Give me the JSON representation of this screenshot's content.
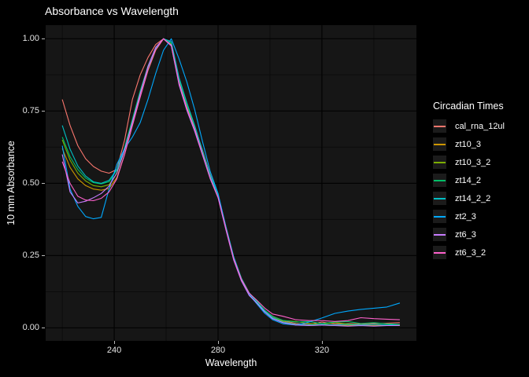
{
  "title": "Absorbance vs Wavelength",
  "axes": {
    "xlabel": "Wavelength",
    "ylabel": "10 mm Absorbance",
    "x_tick_labels": [
      "240",
      "280",
      "320"
    ],
    "y_tick_labels": [
      "0.00",
      "0.25",
      "0.50",
      "0.75",
      "1.00"
    ]
  },
  "legend": {
    "title": "Circadian Times"
  },
  "colors": {
    "background": "#000000",
    "panel": "#161616",
    "grid_major": "#020202",
    "grid_minor": "#0b0b0b",
    "text": "#ffffff",
    "tick_text": "#e3e3e3",
    "tick_mark": "#b8b8b8",
    "legend_key_bg": "#1b1b1b"
  },
  "chart_data": {
    "type": "line",
    "title": "Absorbance vs Wavelength",
    "xlabel": "Wavelength",
    "ylabel": "10 mm Absorbance",
    "legend_title": "Circadian Times",
    "legend_position": "right",
    "grid": true,
    "xlim": [
      213.6,
      356.4
    ],
    "ylim": [
      -0.045,
      1.047
    ],
    "x_ticks_major": [
      240,
      280,
      320
    ],
    "x_ticks_minor": [
      220,
      260,
      300,
      340
    ],
    "y_ticks_major": [
      0.0,
      0.25,
      0.5,
      0.75,
      1.0
    ],
    "y_ticks_minor": [
      0.125,
      0.375,
      0.625,
      0.875
    ],
    "x": [
      220,
      223,
      226,
      229,
      232,
      235,
      238,
      241,
      244,
      247,
      250,
      253,
      256,
      259,
      262,
      265,
      268,
      271,
      274,
      277,
      280,
      283,
      286,
      289,
      292,
      295,
      298,
      301,
      305,
      310,
      315,
      320,
      325,
      330,
      335,
      340,
      345,
      350
    ],
    "series": [
      {
        "name": "cal_rna_12ul",
        "color": "#F8766D",
        "values": [
          0.79,
          0.7,
          0.63,
          0.585,
          0.558,
          0.542,
          0.535,
          0.548,
          0.65,
          0.79,
          0.875,
          0.935,
          0.98,
          1.0,
          0.975,
          0.845,
          0.76,
          0.695,
          0.615,
          0.53,
          0.46,
          0.345,
          0.24,
          0.165,
          0.115,
          0.09,
          0.06,
          0.04,
          0.025,
          0.015,
          0.012,
          0.02,
          0.013,
          0.015,
          0.013,
          0.015,
          0.016,
          0.018
        ]
      },
      {
        "name": "zt10_3",
        "color": "#CD9600",
        "values": [
          0.62,
          0.555,
          0.515,
          0.492,
          0.48,
          0.476,
          0.482,
          0.52,
          0.6,
          0.7,
          0.8,
          0.89,
          0.96,
          1.0,
          0.98,
          0.85,
          0.765,
          0.69,
          0.605,
          0.52,
          0.455,
          0.345,
          0.24,
          0.168,
          0.118,
          0.088,
          0.058,
          0.035,
          0.022,
          0.012,
          0.008,
          0.01,
          0.008,
          0.01,
          0.008,
          0.008,
          0.01,
          0.01
        ]
      },
      {
        "name": "zt10_3_2",
        "color": "#7CAE00",
        "values": [
          0.65,
          0.58,
          0.535,
          0.508,
          0.492,
          0.488,
          0.495,
          0.535,
          0.615,
          0.715,
          0.815,
          0.9,
          0.965,
          1.0,
          0.982,
          0.855,
          0.77,
          0.695,
          0.61,
          0.525,
          0.458,
          0.35,
          0.245,
          0.17,
          0.12,
          0.09,
          0.06,
          0.038,
          0.025,
          0.022,
          0.015,
          0.012,
          0.018,
          0.014,
          0.01,
          0.012,
          0.01,
          0.012
        ]
      },
      {
        "name": "zt14_2",
        "color": "#00BE67",
        "values": [
          0.66,
          0.592,
          0.548,
          0.518,
          0.502,
          0.498,
          0.505,
          0.545,
          0.625,
          0.722,
          0.82,
          0.905,
          0.968,
          1.0,
          0.985,
          0.858,
          0.772,
          0.698,
          0.612,
          0.527,
          0.46,
          0.352,
          0.247,
          0.172,
          0.121,
          0.091,
          0.061,
          0.039,
          0.026,
          0.02,
          0.022,
          0.015,
          0.02,
          0.022,
          0.015,
          0.018,
          0.014,
          0.012
        ]
      },
      {
        "name": "zt14_2_2",
        "color": "#00BFC4",
        "values": [
          0.7,
          0.618,
          0.56,
          0.525,
          0.505,
          0.5,
          0.51,
          0.548,
          0.62,
          0.712,
          0.812,
          0.902,
          0.966,
          1.0,
          0.99,
          0.865,
          0.778,
          0.7,
          0.612,
          0.525,
          0.462,
          0.35,
          0.245,
          0.17,
          0.118,
          0.088,
          0.058,
          0.035,
          0.02,
          0.012,
          0.01,
          0.012,
          0.01,
          0.012,
          0.01,
          0.012,
          0.01,
          0.012
        ]
      },
      {
        "name": "zt2_3",
        "color": "#00A9FF",
        "values": [
          0.63,
          0.48,
          0.42,
          0.385,
          0.377,
          0.382,
          0.48,
          0.565,
          0.62,
          0.66,
          0.71,
          0.79,
          0.88,
          0.96,
          1.0,
          0.93,
          0.85,
          0.755,
          0.645,
          0.54,
          0.465,
          0.35,
          0.245,
          0.168,
          0.115,
          0.082,
          0.05,
          0.028,
          0.014,
          0.01,
          0.02,
          0.034,
          0.05,
          0.058,
          0.064,
          0.068,
          0.072,
          0.086
        ]
      },
      {
        "name": "zt6_3",
        "color": "#C77CFF",
        "values": [
          0.6,
          0.47,
          0.432,
          0.438,
          0.45,
          0.465,
          0.49,
          0.535,
          0.615,
          0.712,
          0.81,
          0.905,
          0.97,
          1.0,
          0.975,
          0.84,
          0.752,
          0.68,
          0.598,
          0.515,
          0.45,
          0.34,
          0.235,
          0.162,
          0.112,
          0.085,
          0.055,
          0.032,
          0.018,
          0.01,
          0.008,
          0.01,
          0.008,
          0.006,
          0.008,
          0.006,
          0.008,
          0.008
        ]
      },
      {
        "name": "zt6_3_2",
        "color": "#FF61CC",
        "values": [
          0.575,
          0.5,
          0.455,
          0.442,
          0.44,
          0.448,
          0.47,
          0.515,
          0.6,
          0.7,
          0.798,
          0.892,
          0.962,
          1.0,
          0.978,
          0.848,
          0.76,
          0.688,
          0.602,
          0.518,
          0.452,
          0.345,
          0.24,
          0.168,
          0.12,
          0.095,
          0.068,
          0.048,
          0.04,
          0.028,
          0.025,
          0.025,
          0.022,
          0.025,
          0.035,
          0.032,
          0.03,
          0.028
        ]
      }
    ]
  }
}
